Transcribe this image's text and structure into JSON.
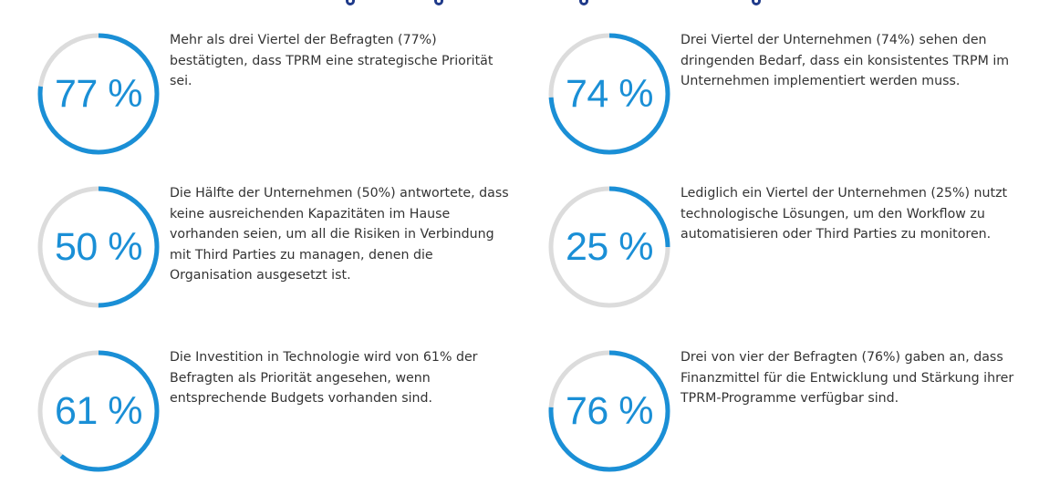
{
  "heading": {
    "visible_fragment": "(cropped heading — only descenders of letters visible)",
    "color": "#1f3a8a"
  },
  "colors": {
    "ring_fill": "#1a8fd6",
    "ring_track": "#dcdcdc",
    "value_text": "#1a8fd6",
    "body_text": "#333333"
  },
  "stats": [
    {
      "value": 77,
      "label": "77 %",
      "text": "Mehr als drei Viertel der Befragten (77%) bestätigten, dass TPRM eine strategische Priorität sei."
    },
    {
      "value": 74,
      "label": "74 %",
      "text": "Drei Viertel der Unternehmen (74%) sehen den dringenden Bedarf, dass ein konsistentes TRPM im Unternehmen implementiert werden muss."
    },
    {
      "value": 50,
      "label": "50 %",
      "text": "Die Hälfte der Unternehmen (50%) antwortete, dass keine ausreichenden Kapazitäten im Hause vorhanden seien, um all die Risiken in Verbindung mit Third Parties zu managen, denen die Organisation ausgesetzt ist."
    },
    {
      "value": 25,
      "label": "25 %",
      "text": "Lediglich ein Viertel der Unternehmen (25%) nutzt technologische Lösungen, um den Workflow zu automatisieren oder Third Parties zu monitoren."
    },
    {
      "value": 61,
      "label": "61 %",
      "text": "Die Investition in Technologie wird von 61% der Befragten als Priorität angesehen, wenn entsprechende Budgets vorhanden sind."
    },
    {
      "value": 76,
      "label": "76 %",
      "text": "Drei von vier der Befragten (76%) gaben an, dass Finanzmittel für die Entwicklung und Stärkung ihrer TPRM-Programme verfügbar sind."
    }
  ]
}
